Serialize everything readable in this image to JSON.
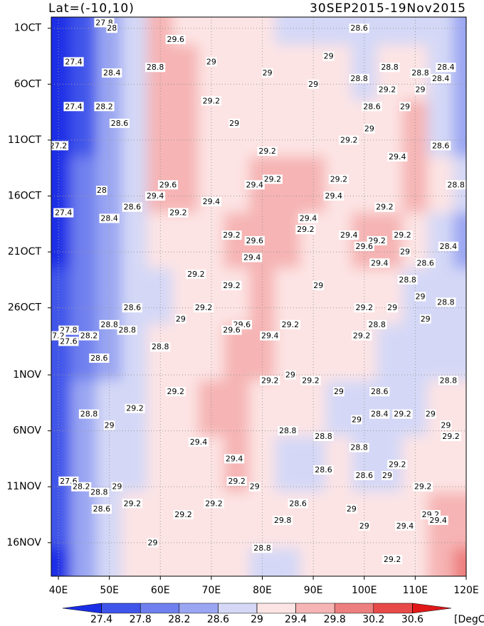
{
  "chart_data": {
    "type": "heatmap",
    "title": "Lat=(-10,10)",
    "subtitle": "30SEP2015-19Nov2015",
    "x": [
      40,
      45,
      50,
      55,
      60,
      65,
      70,
      75,
      80,
      85,
      90,
      95,
      100,
      105,
      110,
      115,
      120
    ],
    "y": [
      0,
      5,
      10,
      15,
      20,
      25,
      30,
      35,
      40,
      45,
      50
    ],
    "z": [
      [
        27.2,
        27.6,
        28.2,
        28.8,
        29.4,
        29.2,
        29.0,
        29.0,
        29.0,
        28.8,
        28.9,
        28.9,
        28.8,
        28.6,
        28.8,
        28.6,
        28.4
      ],
      [
        27.2,
        27.7,
        28.3,
        28.8,
        29.5,
        29.4,
        29.1,
        29.0,
        29.0,
        29.0,
        29.1,
        29.0,
        28.8,
        29.0,
        29.2,
        28.6,
        28.4
      ],
      [
        27.2,
        27.6,
        28.3,
        28.8,
        29.5,
        29.5,
        29.2,
        29.0,
        29.2,
        29.1,
        29.3,
        29.2,
        29.0,
        29.2,
        29.4,
        28.6,
        28.5
      ],
      [
        27.3,
        27.8,
        28.4,
        28.8,
        29.4,
        29.5,
        29.2,
        29.2,
        29.6,
        29.4,
        29.4,
        29.3,
        29.1,
        29.3,
        29.5,
        29.0,
        28.7
      ],
      [
        27.3,
        27.8,
        28.4,
        28.7,
        29.0,
        29.2,
        29.3,
        29.6,
        29.7,
        29.5,
        29.3,
        29.2,
        29.5,
        29.4,
        29.0,
        28.6,
        28.3
      ],
      [
        27.4,
        27.8,
        28.5,
        28.6,
        28.9,
        29.1,
        29.2,
        29.3,
        29.4,
        29.3,
        29.2,
        29.1,
        29.3,
        29.0,
        28.7,
        28.6,
        28.7
      ],
      [
        27.5,
        28.0,
        28.5,
        28.7,
        29.0,
        29.2,
        29.3,
        29.7,
        29.5,
        29.3,
        29.2,
        29.1,
        29.0,
        28.9,
        28.8,
        28.9,
        28.8
      ],
      [
        27.5,
        28.2,
        28.6,
        28.9,
        29.1,
        29.3,
        29.4,
        29.5,
        29.3,
        29.1,
        29.0,
        28.9,
        28.8,
        28.6,
        28.9,
        29.0,
        29.1
      ],
      [
        27.7,
        28.3,
        28.7,
        28.9,
        29.0,
        29.2,
        29.3,
        29.4,
        29.1,
        28.9,
        28.8,
        29.0,
        28.7,
        28.9,
        29.2,
        29.3,
        29.3
      ],
      [
        27.5,
        28.3,
        28.8,
        29.0,
        29.1,
        29.2,
        29.2,
        29.3,
        29.2,
        29.0,
        29.0,
        29.1,
        29.0,
        29.2,
        29.3,
        29.5,
        29.6
      ],
      [
        27.3,
        28.2,
        28.8,
        29.0,
        29.1,
        29.2,
        29.1,
        29.2,
        28.9,
        28.8,
        29.1,
        29.2,
        29.2,
        29.1,
        29.3,
        29.6,
        29.8
      ]
    ],
    "xlim": [
      38.6,
      120
    ],
    "ylim": [
      0,
      50
    ],
    "y_inverted": true,
    "xticks": [
      {
        "value": 40,
        "label": "40E"
      },
      {
        "value": 50,
        "label": "50E"
      },
      {
        "value": 60,
        "label": "60E"
      },
      {
        "value": 70,
        "label": "70E"
      },
      {
        "value": 80,
        "label": "80E"
      },
      {
        "value": 90,
        "label": "90E"
      },
      {
        "value": 100,
        "label": "100E"
      },
      {
        "value": 110,
        "label": "110E"
      },
      {
        "value": 120,
        "label": "120E"
      }
    ],
    "yticks": [
      {
        "value": 1,
        "label": "1OCT"
      },
      {
        "value": 6,
        "label": "6OCT"
      },
      {
        "value": 11,
        "label": "11OCT"
      },
      {
        "value": 16,
        "label": "16OCT"
      },
      {
        "value": 21,
        "label": "21OCT"
      },
      {
        "value": 26,
        "label": "26OCT"
      },
      {
        "value": 32,
        "label": "1NOV"
      },
      {
        "value": 37,
        "label": "6NOV"
      },
      {
        "value": 42,
        "label": "11NOV"
      },
      {
        "value": 47,
        "label": "16NOV"
      }
    ],
    "grid": true,
    "colorbar": {
      "levels": [
        27.4,
        27.8,
        28.2,
        28.6,
        29,
        29.4,
        29.8,
        30.2,
        30.6
      ],
      "colors": [
        "#1a2ee6",
        "#3f55ea",
        "#6f80ee",
        "#9aa6f2",
        "#d4d8f6",
        "#fde4e4",
        "#f6b4b4",
        "#ee7f7f",
        "#e84a4a",
        "#e01818"
      ],
      "unit": "[DegC]"
    },
    "contour_labels": [
      {
        "x": 49,
        "y": 0.5,
        "text": "27.8"
      },
      {
        "x": 50.5,
        "y": 1,
        "text": "28"
      },
      {
        "x": 63,
        "y": 2,
        "text": "29.6"
      },
      {
        "x": 70,
        "y": 4,
        "text": "29"
      },
      {
        "x": 99,
        "y": 1,
        "text": "28.6"
      },
      {
        "x": 43,
        "y": 4,
        "text": "27.4"
      },
      {
        "x": 50.5,
        "y": 5,
        "text": "28.4"
      },
      {
        "x": 59,
        "y": 4.5,
        "text": "28.8"
      },
      {
        "x": 81,
        "y": 5,
        "text": "29"
      },
      {
        "x": 93,
        "y": 3.5,
        "text": "29"
      },
      {
        "x": 90,
        "y": 6,
        "text": "29"
      },
      {
        "x": 99,
        "y": 5.5,
        "text": "28.8"
      },
      {
        "x": 105,
        "y": 4.5,
        "text": "28.8"
      },
      {
        "x": 111,
        "y": 5,
        "text": "28.8"
      },
      {
        "x": 116,
        "y": 4.5,
        "text": "28.4"
      },
      {
        "x": 115,
        "y": 5.5,
        "text": "28.4"
      },
      {
        "x": 104.5,
        "y": 6.5,
        "text": "29.2"
      },
      {
        "x": 111,
        "y": 6.5,
        "text": "29"
      },
      {
        "x": 43,
        "y": 8,
        "text": "27.4"
      },
      {
        "x": 49,
        "y": 8,
        "text": "28.2"
      },
      {
        "x": 70,
        "y": 7.5,
        "text": "29.2"
      },
      {
        "x": 101.5,
        "y": 8,
        "text": "28.6"
      },
      {
        "x": 108,
        "y": 8,
        "text": "29"
      },
      {
        "x": 52,
        "y": 9.5,
        "text": "28.6"
      },
      {
        "x": 74.5,
        "y": 9.5,
        "text": "29"
      },
      {
        "x": 101,
        "y": 10,
        "text": "29"
      },
      {
        "x": 40,
        "y": 11.5,
        "text": "27.2"
      },
      {
        "x": 81,
        "y": 12,
        "text": "29.2"
      },
      {
        "x": 97,
        "y": 11,
        "text": "29.2"
      },
      {
        "x": 106.5,
        "y": 12.5,
        "text": "29.4"
      },
      {
        "x": 115,
        "y": 11.5,
        "text": "28.6"
      },
      {
        "x": 61.5,
        "y": 15,
        "text": "29.6"
      },
      {
        "x": 48.5,
        "y": 15.5,
        "text": "28"
      },
      {
        "x": 59,
        "y": 16,
        "text": "29.4"
      },
      {
        "x": 70,
        "y": 16.5,
        "text": "29.4"
      },
      {
        "x": 82,
        "y": 14.5,
        "text": "29.2"
      },
      {
        "x": 78.5,
        "y": 15,
        "text": "29.4"
      },
      {
        "x": 95,
        "y": 14.5,
        "text": "29.2"
      },
      {
        "x": 94,
        "y": 16,
        "text": "29.4"
      },
      {
        "x": 104,
        "y": 17,
        "text": "29.2"
      },
      {
        "x": 118,
        "y": 15,
        "text": "28.8"
      },
      {
        "x": 41,
        "y": 17.5,
        "text": "27.4"
      },
      {
        "x": 50,
        "y": 18,
        "text": "28.4"
      },
      {
        "x": 54.5,
        "y": 17,
        "text": "28.6"
      },
      {
        "x": 63.5,
        "y": 17.5,
        "text": "29.2"
      },
      {
        "x": 89,
        "y": 18,
        "text": "29.4"
      },
      {
        "x": 88.5,
        "y": 19,
        "text": "29.2"
      },
      {
        "x": 74,
        "y": 19.5,
        "text": "29.2"
      },
      {
        "x": 78.5,
        "y": 20,
        "text": "29.6"
      },
      {
        "x": 97,
        "y": 19.5,
        "text": "29.4"
      },
      {
        "x": 102.5,
        "y": 20,
        "text": "29.2"
      },
      {
        "x": 107.5,
        "y": 19.5,
        "text": "29.2"
      },
      {
        "x": 100,
        "y": 20.5,
        "text": "29.6"
      },
      {
        "x": 108,
        "y": 21,
        "text": "29"
      },
      {
        "x": 78,
        "y": 21.5,
        "text": "29.4"
      },
      {
        "x": 116.5,
        "y": 20.5,
        "text": "28.4"
      },
      {
        "x": 103,
        "y": 22,
        "text": "29.4"
      },
      {
        "x": 112,
        "y": 22,
        "text": "28.6"
      },
      {
        "x": 67,
        "y": 23,
        "text": "29.2"
      },
      {
        "x": 74,
        "y": 24,
        "text": "29.2"
      },
      {
        "x": 91,
        "y": 24,
        "text": "29"
      },
      {
        "x": 108.5,
        "y": 23.5,
        "text": "28.8"
      },
      {
        "x": 111,
        "y": 25,
        "text": "29"
      },
      {
        "x": 54.5,
        "y": 26,
        "text": "28.6"
      },
      {
        "x": 68.5,
        "y": 26,
        "text": "29.2"
      },
      {
        "x": 100,
        "y": 26,
        "text": "29.2"
      },
      {
        "x": 105.5,
        "y": 26,
        "text": "29"
      },
      {
        "x": 116,
        "y": 25.5,
        "text": "28.8"
      },
      {
        "x": 50,
        "y": 27.5,
        "text": "28.8"
      },
      {
        "x": 53.5,
        "y": 28,
        "text": "28.8"
      },
      {
        "x": 64,
        "y": 27,
        "text": "29"
      },
      {
        "x": 76,
        "y": 27.5,
        "text": "29.6"
      },
      {
        "x": 74,
        "y": 28,
        "text": "29.6"
      },
      {
        "x": 85.5,
        "y": 27.5,
        "text": "29.2"
      },
      {
        "x": 42,
        "y": 28,
        "text": "27.8"
      },
      {
        "x": 39.5,
        "y": 28.5,
        "text": "27.2"
      },
      {
        "x": 42,
        "y": 29,
        "text": "27.6"
      },
      {
        "x": 46,
        "y": 28.5,
        "text": "28.2"
      },
      {
        "x": 81.5,
        "y": 28.5,
        "text": "29.4"
      },
      {
        "x": 102.5,
        "y": 27.5,
        "text": "28.8"
      },
      {
        "x": 112,
        "y": 27,
        "text": "29"
      },
      {
        "x": 99.5,
        "y": 28.5,
        "text": "29.2"
      },
      {
        "x": 48,
        "y": 30.5,
        "text": "28.6"
      },
      {
        "x": 60,
        "y": 29.5,
        "text": "28.8"
      },
      {
        "x": 81.5,
        "y": 32.5,
        "text": "29.2"
      },
      {
        "x": 85.5,
        "y": 32,
        "text": "29"
      },
      {
        "x": 89.5,
        "y": 32.5,
        "text": "29.2"
      },
      {
        "x": 95,
        "y": 33.5,
        "text": "29"
      },
      {
        "x": 103,
        "y": 33.5,
        "text": "28.6"
      },
      {
        "x": 116.5,
        "y": 32.5,
        "text": "28.8"
      },
      {
        "x": 63,
        "y": 33.5,
        "text": "29.2"
      },
      {
        "x": 55,
        "y": 35,
        "text": "29.2"
      },
      {
        "x": 46,
        "y": 35.5,
        "text": "28.8"
      },
      {
        "x": 50,
        "y": 36.5,
        "text": "29"
      },
      {
        "x": 103,
        "y": 35.5,
        "text": "28.4"
      },
      {
        "x": 107.5,
        "y": 35.5,
        "text": "29.2"
      },
      {
        "x": 113,
        "y": 35.5,
        "text": "29"
      },
      {
        "x": 98.5,
        "y": 36,
        "text": "29"
      },
      {
        "x": 85,
        "y": 37,
        "text": "28.8"
      },
      {
        "x": 92,
        "y": 37.5,
        "text": "28.8"
      },
      {
        "x": 116,
        "y": 36.5,
        "text": "29"
      },
      {
        "x": 117,
        "y": 37.5,
        "text": "29.2"
      },
      {
        "x": 67.5,
        "y": 38,
        "text": "29.4"
      },
      {
        "x": 99,
        "y": 38.5,
        "text": "28.8"
      },
      {
        "x": 74.5,
        "y": 39.5,
        "text": "29.4"
      },
      {
        "x": 92,
        "y": 40.5,
        "text": "28.6"
      },
      {
        "x": 106.5,
        "y": 40,
        "text": "29.2"
      },
      {
        "x": 100,
        "y": 41,
        "text": "28.6"
      },
      {
        "x": 104.5,
        "y": 41,
        "text": "29"
      },
      {
        "x": 42,
        "y": 41.5,
        "text": "27.6"
      },
      {
        "x": 44.5,
        "y": 42,
        "text": "28.2"
      },
      {
        "x": 48,
        "y": 42.5,
        "text": "28.8"
      },
      {
        "x": 51.5,
        "y": 42,
        "text": "29"
      },
      {
        "x": 75,
        "y": 41.5,
        "text": "29.2"
      },
      {
        "x": 78.5,
        "y": 42,
        "text": "29"
      },
      {
        "x": 111.5,
        "y": 42,
        "text": "29.2"
      },
      {
        "x": 54.5,
        "y": 43.5,
        "text": "29.2"
      },
      {
        "x": 48.5,
        "y": 44,
        "text": "28.6"
      },
      {
        "x": 70.5,
        "y": 43.5,
        "text": "29.2"
      },
      {
        "x": 87,
        "y": 43.5,
        "text": "28.6"
      },
      {
        "x": 97.5,
        "y": 44,
        "text": "29"
      },
      {
        "x": 64.5,
        "y": 44.5,
        "text": "29.2"
      },
      {
        "x": 84,
        "y": 45,
        "text": "29.8"
      },
      {
        "x": 100,
        "y": 45.5,
        "text": "29"
      },
      {
        "x": 113,
        "y": 44.5,
        "text": "29.2"
      },
      {
        "x": 114.5,
        "y": 45,
        "text": "29.4"
      },
      {
        "x": 108,
        "y": 45.5,
        "text": "29.4"
      },
      {
        "x": 58.5,
        "y": 47,
        "text": "29"
      },
      {
        "x": 80,
        "y": 47.5,
        "text": "28.8"
      },
      {
        "x": 105.5,
        "y": 48.5,
        "text": "29.2"
      }
    ]
  }
}
